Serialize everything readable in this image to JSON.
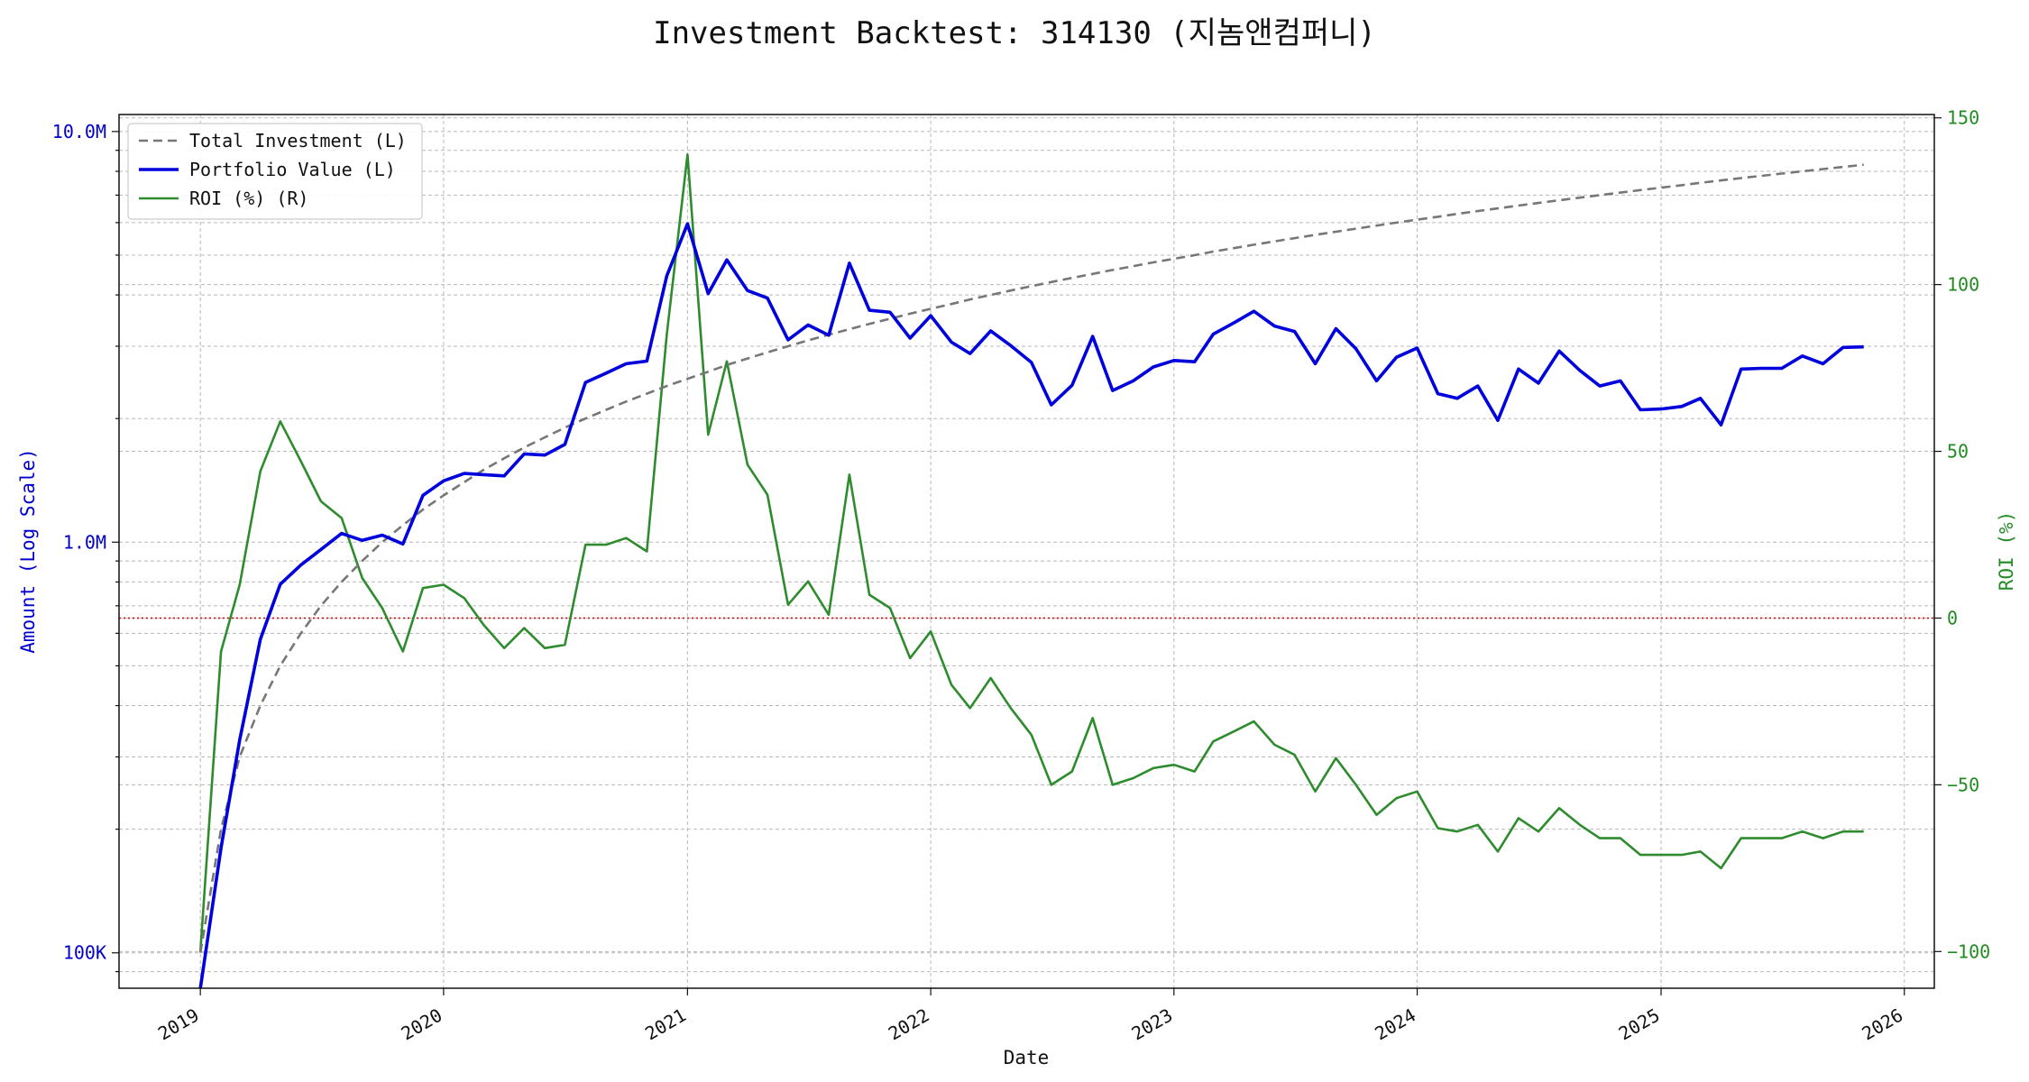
{
  "chart_data": {
    "type": "line",
    "title": "Investment Backtest: 314130 (지놈앤컴퍼니)",
    "xlabel": "Date",
    "ylabel_left": "Amount (Log Scale)",
    "ylabel_right": "ROI (%)",
    "y_left_scale": "log",
    "y_left_range": [
      82000,
      11000000
    ],
    "y_left_ticks": [
      100000,
      1000000,
      10000000
    ],
    "y_left_tick_labels": [
      "100K",
      "1.0M",
      "10.0M"
    ],
    "y_right_range": [
      -111,
      151
    ],
    "y_right_ticks": [
      150,
      100,
      50,
      0,
      -50,
      -100
    ],
    "y_right_tick_labels": [
      "150",
      "100",
      "50",
      "0",
      "−50",
      "−100"
    ],
    "x_range": [
      "2018-09-01",
      "2026-02-15"
    ],
    "x_ticks": [
      "2019-01-01",
      "2020-01-01",
      "2021-01-01",
      "2022-01-01",
      "2023-01-01",
      "2024-01-01",
      "2025-01-01",
      "2026-01-01"
    ],
    "x_tick_labels": [
      "2019",
      "2020",
      "2021",
      "2022",
      "2023",
      "2024",
      "2025",
      "2026"
    ],
    "grid": true,
    "legend_position": "top-left",
    "zero_line_color": "#cc0000",
    "dates": [
      "2019-01-01",
      "2019-02-01",
      "2019-03-01",
      "2019-04-01",
      "2019-05-01",
      "2019-06-01",
      "2019-07-01",
      "2019-08-01",
      "2019-09-01",
      "2019-10-01",
      "2019-11-01",
      "2019-12-01",
      "2020-01-01",
      "2020-02-01",
      "2020-03-01",
      "2020-04-01",
      "2020-05-01",
      "2020-06-01",
      "2020-07-01",
      "2020-08-01",
      "2020-09-01",
      "2020-10-01",
      "2020-11-01",
      "2020-12-01",
      "2021-01-01",
      "2021-02-01",
      "2021-03-01",
      "2021-04-01",
      "2021-05-01",
      "2021-06-01",
      "2021-07-01",
      "2021-08-01",
      "2021-09-01",
      "2021-10-01",
      "2021-11-01",
      "2021-12-01",
      "2022-01-01",
      "2022-02-01",
      "2022-03-01",
      "2022-04-01",
      "2022-05-01",
      "2022-06-01",
      "2022-07-01",
      "2022-08-01",
      "2022-09-01",
      "2022-10-01",
      "2022-11-01",
      "2022-12-01",
      "2023-01-01",
      "2023-02-01",
      "2023-03-01",
      "2023-04-01",
      "2023-05-01",
      "2023-06-01",
      "2023-07-01",
      "2023-08-01",
      "2023-09-01",
      "2023-10-01",
      "2023-11-01",
      "2023-12-01",
      "2024-01-01",
      "2024-02-01",
      "2024-03-01",
      "2024-04-01",
      "2024-05-01",
      "2024-06-01",
      "2024-07-01",
      "2024-08-01",
      "2024-09-01",
      "2024-10-01",
      "2024-11-01",
      "2024-12-01",
      "2025-01-01",
      "2025-02-01",
      "2025-03-01",
      "2025-04-01",
      "2025-05-01",
      "2025-06-01",
      "2025-07-01",
      "2025-08-01",
      "2025-09-01",
      "2025-10-01",
      "2025-11-01"
    ],
    "series": [
      {
        "name": "Total Investment (L)",
        "axis": "left",
        "color": "#777777",
        "dash": true,
        "values": [
          100000,
          200000,
          300000,
          400000,
          500000,
          600000,
          700000,
          800000,
          900000,
          1000000,
          1100000,
          1200000,
          1300000,
          1400000,
          1500000,
          1600000,
          1700000,
          1800000,
          1900000,
          2000000,
          2100000,
          2200000,
          2300000,
          2400000,
          2500000,
          2600000,
          2700000,
          2800000,
          2900000,
          3000000,
          3100000,
          3200000,
          3300000,
          3400000,
          3500000,
          3600000,
          3700000,
          3800000,
          3900000,
          4000000,
          4100000,
          4200000,
          4300000,
          4400000,
          4500000,
          4600000,
          4700000,
          4800000,
          4900000,
          5000000,
          5100000,
          5200000,
          5300000,
          5400000,
          5500000,
          5600000,
          5700000,
          5800000,
          5900000,
          6000000,
          6100000,
          6200000,
          6300000,
          6400000,
          6500000,
          6600000,
          6700000,
          6800000,
          6900000,
          7000000,
          7100000,
          7200000,
          7300000,
          7400000,
          7500000,
          7600000,
          7700000,
          7800000,
          7900000,
          8000000,
          8100000,
          8200000,
          8300000
        ]
      },
      {
        "name": "Portfolio Value (L)",
        "axis": "left",
        "color": "#0000dd",
        "values": [
          0,
          180000,
          330000,
          580000,
          790000,
          880000,
          960000,
          1050000,
          1010000,
          1040000,
          990000,
          1300000,
          1410000,
          1470000,
          1460000,
          1450000,
          1640000,
          1630000,
          1730000,
          2450000,
          2580000,
          2720000,
          2760000,
          4450000,
          5960000,
          4030000,
          4870000,
          4100000,
          3930000,
          3110000,
          3380000,
          3190000,
          4780000,
          3670000,
          3630000,
          3140000,
          3560000,
          3070000,
          2880000,
          3270000,
          3010000,
          2740000,
          2160000,
          2410000,
          3170000,
          2340000,
          2470000,
          2670000,
          2770000,
          2750000,
          3210000,
          3420000,
          3650000,
          3360000,
          3260000,
          2720000,
          3310000,
          2960000,
          2470000,
          2820000,
          2970000,
          2300000,
          2240000,
          2400000,
          1980000,
          2640000,
          2440000,
          2920000,
          2620000,
          2400000,
          2470000,
          2100000,
          2110000,
          2140000,
          2240000,
          1930000,
          2640000,
          2650000,
          2650000,
          2840000,
          2720000,
          2980000,
          2990000
        ]
      },
      {
        "name": "ROI (%) (R)",
        "axis": "right",
        "color": "#2e8b2e",
        "values": [
          -100,
          -10,
          10,
          44,
          59,
          47,
          35,
          30,
          12,
          3,
          -10,
          9,
          10,
          6,
          -2,
          -9,
          -3,
          -9,
          -8,
          22,
          22,
          24,
          20,
          85,
          139,
          55,
          77,
          46,
          37,
          4,
          11,
          1,
          43,
          7,
          3,
          -12,
          -4,
          -20,
          -27,
          -18,
          -27,
          -35,
          -50,
          -46,
          -30,
          -50,
          -48,
          -45,
          -44,
          -46,
          -37,
          -34,
          -31,
          -38,
          -41,
          -52,
          -42,
          -50,
          -59,
          -54,
          -52,
          -63,
          -64,
          -62,
          -70,
          -60,
          -64,
          -57,
          -62,
          -66,
          -66,
          -71,
          -71,
          -71,
          -70,
          -75,
          -66,
          -66,
          -66,
          -64,
          -66,
          -64,
          -64
        ]
      }
    ]
  }
}
